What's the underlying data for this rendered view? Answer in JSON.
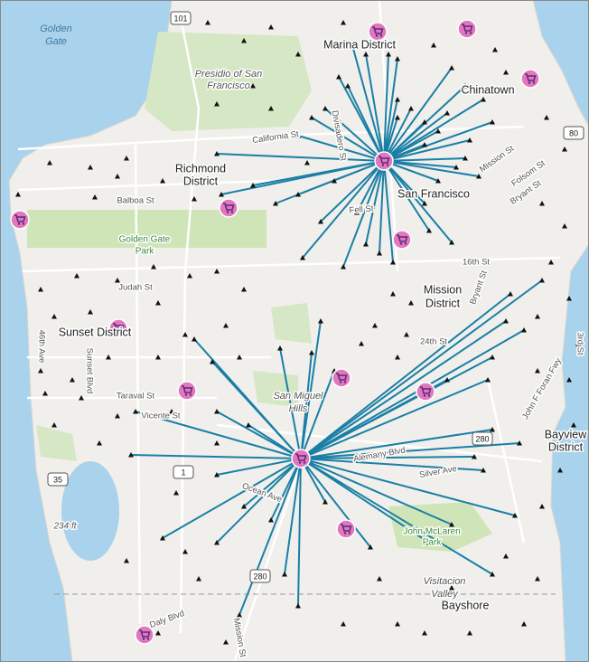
{
  "places": [
    "Marina District",
    "Chinatown",
    "Richmond",
    "District",
    "San Francisco",
    "Mission",
    "District",
    "Sunset District",
    "Bayview",
    "District",
    "Bayshore"
  ],
  "areas": [
    "Presidio of San",
    "Francisco",
    "San Miguel",
    "Hills",
    "Visitacion",
    "Valley"
  ],
  "parks": [
    "Golden Gate",
    "Park",
    "John McLaren",
    "Park"
  ],
  "water": [
    "Golden",
    "Gate"
  ],
  "streets": [
    "California St",
    "Balboa St",
    "Fell St",
    "Judah St",
    "Taraval St",
    "Vicente St",
    "46th Ave",
    "Sunset Blvd",
    "24th St",
    "16th St",
    "Bryant St",
    "Bryant St",
    "Mission St",
    "Folsom St",
    "Divisadero St",
    "Alemany Blvd",
    "Silver Ave",
    "Ocean Ave",
    "John F Foran Fwy",
    "3rd St",
    "Daly Blvd",
    "Mission St"
  ],
  "highway_shields": [
    "101",
    "80",
    "280",
    "1",
    "35",
    "280"
  ],
  "elevation": "234 ft"
}
